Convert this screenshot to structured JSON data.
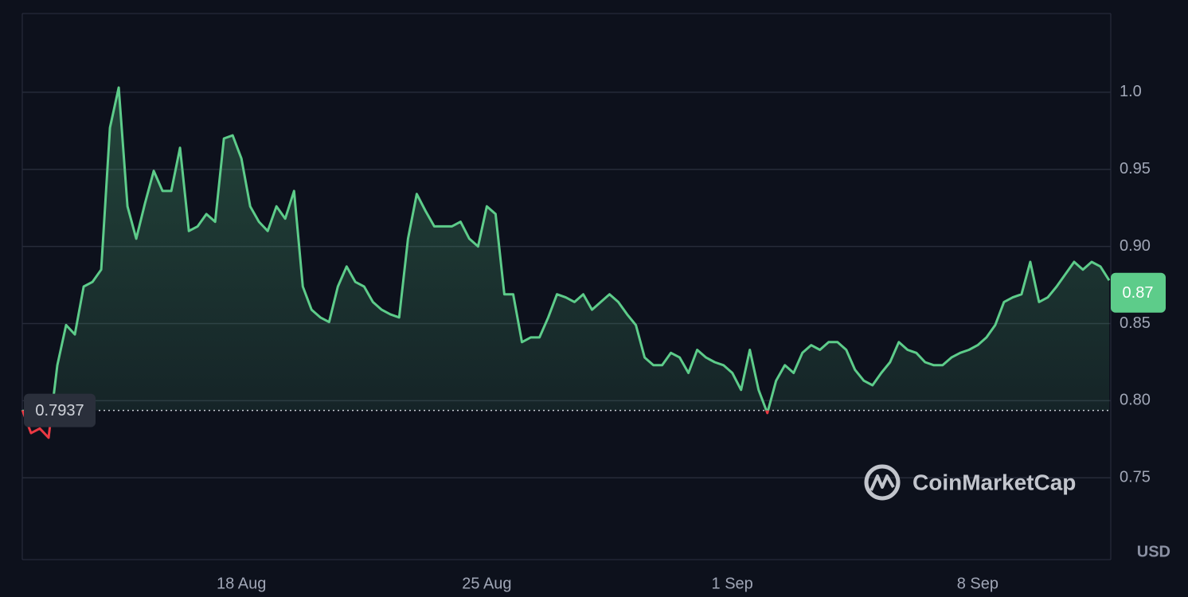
{
  "chart_data": {
    "type": "line",
    "categories": [
      null,
      null,
      null,
      null,
      null,
      null,
      null,
      null,
      null,
      null,
      null,
      null,
      null,
      null,
      null,
      null,
      null,
      null,
      null,
      null,
      null,
      null,
      null,
      null,
      null,
      "18 Aug",
      null,
      null,
      null,
      null,
      null,
      null,
      null,
      null,
      null,
      null,
      null,
      null,
      null,
      null,
      null,
      null,
      null,
      null,
      null,
      null,
      null,
      null,
      null,
      null,
      null,
      null,
      null,
      "25 Aug",
      null,
      null,
      null,
      null,
      null,
      null,
      null,
      null,
      null,
      null,
      null,
      null,
      null,
      null,
      null,
      null,
      null,
      null,
      null,
      null,
      null,
      null,
      null,
      null,
      null,
      null,
      null,
      "1 Sep",
      null,
      null,
      null,
      null,
      null,
      null,
      null,
      null,
      null,
      null,
      null,
      null,
      null,
      null,
      null,
      null,
      null,
      null,
      null,
      null,
      null,
      null,
      null,
      null,
      null,
      null,
      null,
      "8 Sep",
      null,
      null,
      null,
      null,
      null,
      null,
      null,
      null,
      null,
      null,
      null,
      null,
      null,
      null,
      null
    ],
    "values": [
      0.794,
      0.779,
      0.782,
      0.776,
      0.823,
      0.849,
      0.843,
      0.874,
      0.877,
      0.885,
      0.977,
      1.003,
      0.926,
      0.905,
      0.928,
      0.949,
      0.936,
      0.936,
      0.964,
      0.91,
      0.913,
      0.921,
      0.916,
      0.97,
      0.972,
      0.957,
      0.926,
      0.916,
      0.91,
      0.926,
      0.918,
      0.936,
      0.874,
      0.859,
      0.854,
      0.851,
      0.874,
      0.887,
      0.877,
      0.874,
      0.864,
      0.859,
      0.856,
      0.854,
      0.905,
      0.934,
      0.923,
      0.913,
      0.913,
      0.913,
      0.916,
      0.905,
      0.9,
      0.926,
      0.921,
      0.869,
      0.869,
      0.838,
      0.841,
      0.841,
      0.854,
      0.869,
      0.867,
      0.864,
      0.869,
      0.859,
      0.864,
      0.869,
      0.864,
      0.856,
      0.849,
      0.828,
      0.823,
      0.823,
      0.831,
      0.828,
      0.818,
      0.833,
      0.828,
      0.825,
      0.823,
      0.818,
      0.807,
      0.833,
      0.807,
      0.792,
      0.813,
      0.823,
      0.818,
      0.831,
      0.836,
      0.833,
      0.838,
      0.838,
      0.833,
      0.82,
      0.813,
      0.81,
      0.818,
      0.825,
      0.838,
      0.833,
      0.831,
      0.825,
      0.823,
      0.823,
      0.828,
      0.831,
      0.833,
      0.836,
      0.841,
      0.849,
      0.864,
      0.867,
      0.869,
      0.89,
      0.864,
      0.867,
      0.874,
      0.882,
      0.89,
      0.885,
      0.89,
      0.887,
      0.878
    ],
    "color": "#5dcc8a",
    "down_color": "#ea3943",
    "reference_price": 0.7937,
    "current_price": 0.87,
    "ylim": [
      0.697,
      1.051
    ],
    "yticks": [
      0.75,
      {
        "value": 0.8,
        "label": "0.80"
      },
      0.85,
      {
        "value": 0.9,
        "label": "0.90"
      },
      0.95,
      {
        "value": 1,
        "label": "1.0"
      }
    ],
    "grid": true,
    "currency": "USD",
    "watermark": "CoinMarketCap"
  }
}
